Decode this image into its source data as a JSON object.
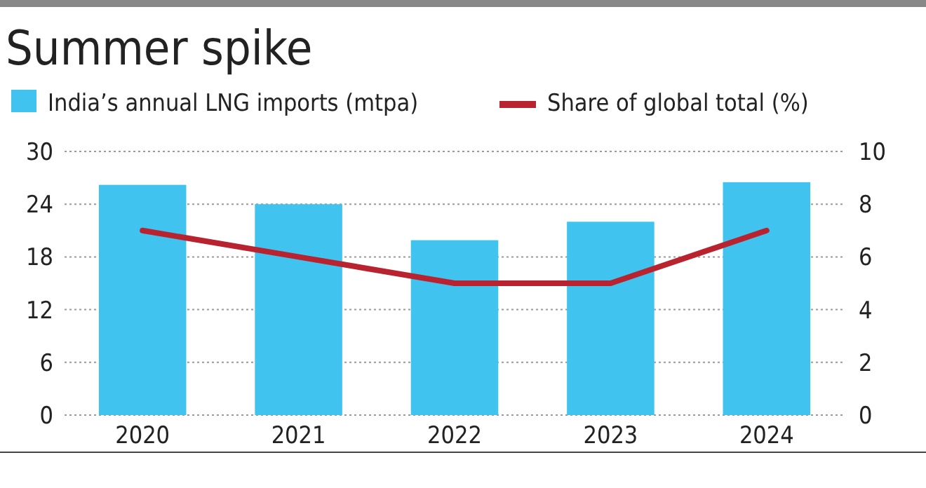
{
  "chart_data": {
    "type": "bar",
    "title": "Summer spike",
    "categories": [
      "2020",
      "2021",
      "2022",
      "2023",
      "2024"
    ],
    "series": [
      {
        "name": "India’s annual LNG imports (mtpa)",
        "color": "#40c4ef",
        "values": [
          26.2,
          24.0,
          19.9,
          22.0,
          26.5
        ]
      },
      {
        "name": "Share of global total (%)",
        "type": "line",
        "axis": "y2",
        "color": "#b8232f",
        "values": [
          7,
          6,
          5,
          5,
          7
        ]
      }
    ],
    "ylim": [
      0,
      30
    ],
    "yticks": [
      0,
      6,
      12,
      18,
      24,
      30
    ],
    "y2lim": [
      0,
      10
    ],
    "y2ticks": [
      0,
      2,
      4,
      6,
      8,
      10
    ],
    "grid": "y",
    "legend": "top"
  }
}
